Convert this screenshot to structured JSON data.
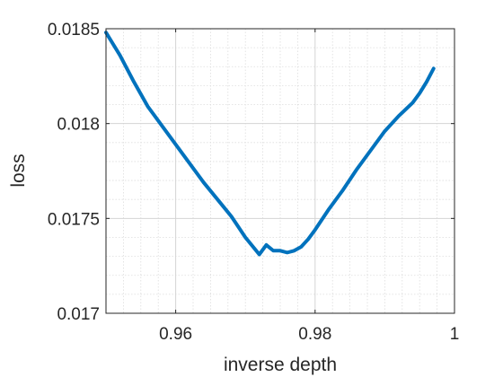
{
  "chart_data": {
    "type": "line",
    "title": "",
    "xlabel": "inverse depth",
    "ylabel": "loss",
    "xlim": [
      0.95,
      1.0
    ],
    "ylim": [
      0.017,
      0.0185
    ],
    "x_ticks": [
      0.96,
      0.98,
      1.0
    ],
    "x_tick_labels": [
      "0.96",
      "0.98",
      "1"
    ],
    "y_ticks": [
      0.017,
      0.0175,
      0.018,
      0.0185
    ],
    "y_tick_labels": [
      "0.017",
      "0.0175",
      "0.018",
      "0.0185"
    ],
    "x_minor_step": 0.0025,
    "y_minor_step": 0.0001,
    "grid": true,
    "minor_grid": true,
    "legend": "none",
    "series": [
      {
        "color": "#0072BD",
        "x": [
          0.95,
          0.952,
          0.954,
          0.956,
          0.958,
          0.96,
          0.962,
          0.964,
          0.966,
          0.968,
          0.97,
          0.972,
          0.973,
          0.974,
          0.975,
          0.976,
          0.977,
          0.978,
          0.979,
          0.98,
          0.982,
          0.984,
          0.986,
          0.988,
          0.99,
          0.992,
          0.994,
          0.995,
          0.996,
          0.997
        ],
        "y": [
          0.01848,
          0.01836,
          0.01822,
          0.01809,
          0.01799,
          0.01789,
          0.01779,
          0.01769,
          0.0176,
          0.01751,
          0.0174,
          0.01731,
          0.01736,
          0.01733,
          0.01733,
          0.01732,
          0.01733,
          0.01735,
          0.01739,
          0.01744,
          0.01755,
          0.01765,
          0.01776,
          0.01786,
          0.01796,
          0.01804,
          0.01811,
          0.01816,
          0.01822,
          0.01829
        ]
      }
    ]
  }
}
